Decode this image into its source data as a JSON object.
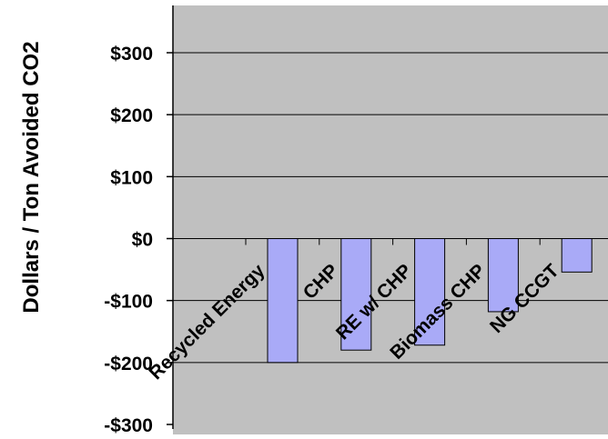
{
  "chart_data": {
    "type": "bar",
    "title": "",
    "xlabel": "",
    "ylabel": "Dollars / Ton Avoided CO2",
    "categories": [
      "Recycled Energy",
      "CHP",
      "RE w/ CHP",
      "Biomass CHP",
      "NG CCGT"
    ],
    "series": [
      {
        "values": [
          -200,
          -180,
          -172,
          -118,
          -54
        ]
      }
    ],
    "ylim": [
      -300,
      300
    ],
    "yticks": [
      300,
      200,
      100,
      0,
      -100,
      -200,
      -300
    ],
    "ytick_labels": [
      "$300",
      "$200",
      "$100",
      "$0",
      "-$100",
      "-$200",
      "-$300"
    ],
    "grid": true,
    "legend": "none",
    "colors": {
      "bar_fill": "#a9aaf7",
      "bar_stroke": "#000000",
      "plot_background": "#c0c0c0",
      "gridline": "#000000"
    }
  }
}
